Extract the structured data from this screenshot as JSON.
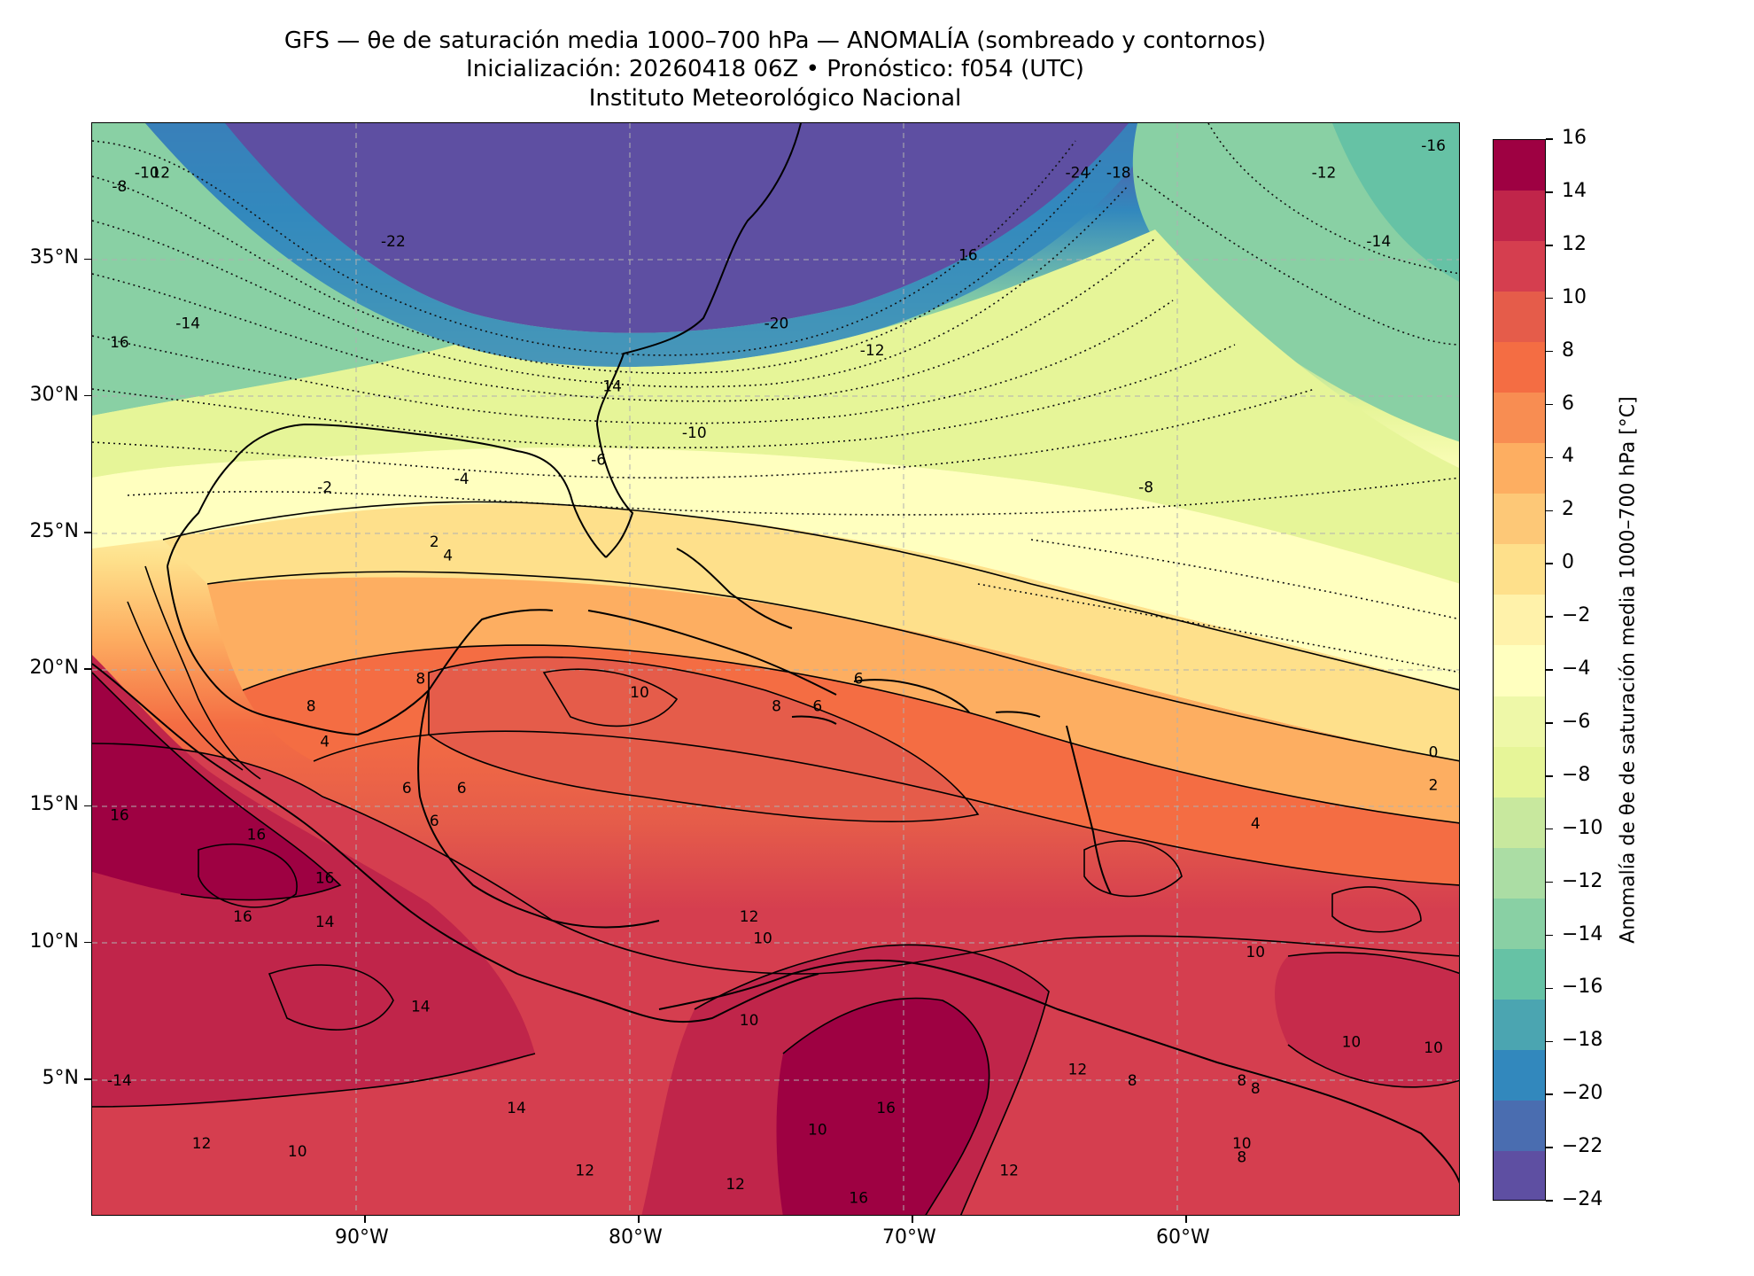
{
  "title": {
    "line1": "GFS — θe de saturación media 1000–700 hPa — ANOMALÍA (sombreado y contornos)",
    "line2": "Inicialización: 20260418 06Z   •   Pronóstico: f054 (UTC)",
    "line3": "Instituto Meteorológico Nacional"
  },
  "map": {
    "lon_range": [
      -100,
      -50
    ],
    "lat_range": [
      0,
      40
    ],
    "lat_ticks": [
      {
        "value": 35,
        "label": "35°N"
      },
      {
        "value": 30,
        "label": "30°N"
      },
      {
        "value": 25,
        "label": "25°N"
      },
      {
        "value": 20,
        "label": "20°N"
      },
      {
        "value": 15,
        "label": "15°N"
      },
      {
        "value": 10,
        "label": "10°N"
      },
      {
        "value": 5,
        "label": "5°N"
      }
    ],
    "lon_ticks": [
      {
        "value": -90,
        "label": "90°W"
      },
      {
        "value": -80,
        "label": "80°W"
      },
      {
        "value": -70,
        "label": "70°W"
      },
      {
        "value": -60,
        "label": "60°W"
      }
    ],
    "gridlines": true,
    "contour_labels": [
      {
        "t": "-8",
        "lon": -99,
        "lat": 37.5
      },
      {
        "t": "-10",
        "lon": -98,
        "lat": 38.0
      },
      {
        "t": "12",
        "lon": -97.5,
        "lat": 38.0
      },
      {
        "t": "-22",
        "lon": -89,
        "lat": 35.5
      },
      {
        "t": "-14",
        "lon": -96.5,
        "lat": 32.5
      },
      {
        "t": "16",
        "lon": -99,
        "lat": 31.8
      },
      {
        "t": "-24",
        "lon": -64,
        "lat": 38.0
      },
      {
        "t": "-18",
        "lon": -62.5,
        "lat": 38.0
      },
      {
        "t": "16",
        "lon": -68,
        "lat": 35.0
      },
      {
        "t": "-20",
        "lon": -75,
        "lat": 32.5
      },
      {
        "t": "-12",
        "lon": -71.5,
        "lat": 31.5
      },
      {
        "t": "14",
        "lon": -81,
        "lat": 30.2
      },
      {
        "t": "-10",
        "lon": -78,
        "lat": 28.5
      },
      {
        "t": "-6",
        "lon": -81.5,
        "lat": 27.5
      },
      {
        "t": "-4",
        "lon": -86.5,
        "lat": 26.8
      },
      {
        "t": "-2",
        "lon": -91.5,
        "lat": 26.5
      },
      {
        "t": "2",
        "lon": -87.5,
        "lat": 24.5
      },
      {
        "t": "4",
        "lon": -87,
        "lat": 24.0
      },
      {
        "t": "-8",
        "lon": -61.5,
        "lat": 26.5
      },
      {
        "t": "-12",
        "lon": -55,
        "lat": 38.0
      },
      {
        "t": "-14",
        "lon": -53,
        "lat": 35.5
      },
      {
        "t": "-16",
        "lon": -51,
        "lat": 39.0
      },
      {
        "t": "8",
        "lon": -88,
        "lat": 19.5
      },
      {
        "t": "10",
        "lon": -80,
        "lat": 19.0
      },
      {
        "t": "8",
        "lon": -92,
        "lat": 18.5
      },
      {
        "t": "6",
        "lon": -72,
        "lat": 19.5
      },
      {
        "t": "6",
        "lon": -73.5,
        "lat": 18.5
      },
      {
        "t": "8",
        "lon": -75,
        "lat": 18.5
      },
      {
        "t": "4",
        "lon": -91.5,
        "lat": 17.2
      },
      {
        "t": "6",
        "lon": -88.5,
        "lat": 15.5
      },
      {
        "t": "6",
        "lon": -86.5,
        "lat": 15.5
      },
      {
        "t": "6",
        "lon": -87.5,
        "lat": 14.3
      },
      {
        "t": "0",
        "lon": -51,
        "lat": 16.8
      },
      {
        "t": "2",
        "lon": -51,
        "lat": 15.6
      },
      {
        "t": "4",
        "lon": -57.5,
        "lat": 14.2
      },
      {
        "t": "16",
        "lon": -99,
        "lat": 14.5
      },
      {
        "t": "16",
        "lon": -94,
        "lat": 13.8
      },
      {
        "t": "16",
        "lon": -91.5,
        "lat": 12.2
      },
      {
        "t": "16",
        "lon": -94.5,
        "lat": 10.8
      },
      {
        "t": "14",
        "lon": -91.5,
        "lat": 10.6
      },
      {
        "t": "12",
        "lon": -76,
        "lat": 10.8
      },
      {
        "t": "10",
        "lon": -75.5,
        "lat": 10.0
      },
      {
        "t": "10",
        "lon": -57.5,
        "lat": 9.5
      },
      {
        "t": "14",
        "lon": -88,
        "lat": 7.5
      },
      {
        "t": "10",
        "lon": -76,
        "lat": 7.0
      },
      {
        "t": "10",
        "lon": -54,
        "lat": 6.2
      },
      {
        "t": "10",
        "lon": -51,
        "lat": 6.0
      },
      {
        "t": "12",
        "lon": -64,
        "lat": 5.2
      },
      {
        "t": "8",
        "lon": -62,
        "lat": 4.8
      },
      {
        "t": "8",
        "lon": -58,
        "lat": 4.8
      },
      {
        "t": "8",
        "lon": -57.5,
        "lat": 4.5
      },
      {
        "t": "-14",
        "lon": -99,
        "lat": 4.8
      },
      {
        "t": "14",
        "lon": -84.5,
        "lat": 3.8
      },
      {
        "t": "16",
        "lon": -71,
        "lat": 3.8
      },
      {
        "t": "12",
        "lon": -96,
        "lat": 2.5
      },
      {
        "t": "10",
        "lon": -92.5,
        "lat": 2.2
      },
      {
        "t": "12",
        "lon": -82,
        "lat": 1.5
      },
      {
        "t": "12",
        "lon": -66.5,
        "lat": 1.5
      },
      {
        "t": "10",
        "lon": -58,
        "lat": 2.5
      },
      {
        "t": "8",
        "lon": -58,
        "lat": 2.0
      },
      {
        "t": "16",
        "lon": -72,
        "lat": 0.5
      },
      {
        "t": "10",
        "lon": -73.5,
        "lat": 3.0
      },
      {
        "t": "12",
        "lon": -76.5,
        "lat": 1.0
      }
    ]
  },
  "colorbar": {
    "title": "Anomalía de θe de saturación media 1000–700 hPa [°C]",
    "range": [
      -24,
      16
    ],
    "ticks": [
      {
        "value": 16,
        "label": "16"
      },
      {
        "value": 14,
        "label": "14"
      },
      {
        "value": 12,
        "label": "12"
      },
      {
        "value": 10,
        "label": "10"
      },
      {
        "value": 8,
        "label": "8"
      },
      {
        "value": 6,
        "label": "6"
      },
      {
        "value": 4,
        "label": "4"
      },
      {
        "value": 2,
        "label": "2"
      },
      {
        "value": 0,
        "label": "0"
      },
      {
        "value": -2,
        "label": "−2"
      },
      {
        "value": -4,
        "label": "−4"
      },
      {
        "value": -6,
        "label": "−6"
      },
      {
        "value": -8,
        "label": "−8"
      },
      {
        "value": -10,
        "label": "−10"
      },
      {
        "value": -12,
        "label": "−12"
      },
      {
        "value": -14,
        "label": "−14"
      },
      {
        "value": -16,
        "label": "−16"
      },
      {
        "value": -18,
        "label": "−18"
      },
      {
        "value": -20,
        "label": "−20"
      },
      {
        "value": -22,
        "label": "−22"
      },
      {
        "value": -24,
        "label": "−24"
      }
    ],
    "colors": [
      "#9e0142",
      "#c0254a",
      "#d53e4f",
      "#e55c4a",
      "#f46d43",
      "#f88d52",
      "#fdae61",
      "#fdc877",
      "#fee08b",
      "#fff2aa",
      "#ffffbf",
      "#eef8a8",
      "#e6f598",
      "#c8e89e",
      "#abdda4",
      "#89d0a4",
      "#66c2a5",
      "#4ba5b1",
      "#3288bd",
      "#4a6db0",
      "#5e4fa2"
    ]
  }
}
